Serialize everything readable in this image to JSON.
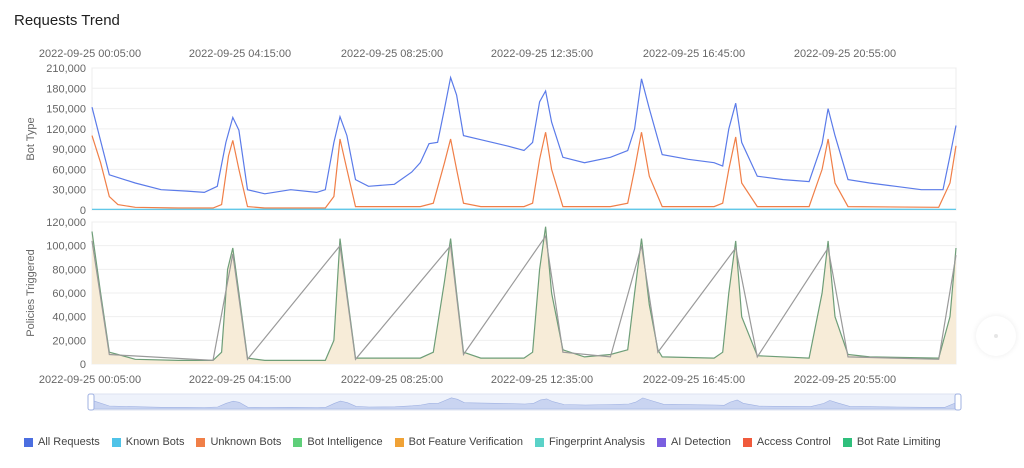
{
  "title": "Requests Trend",
  "chart_data": {
    "type": "line",
    "x_ticks": [
      "2022-09-25 00:05:00",
      "2022-09-25 04:15:00",
      "2022-09-25 08:25:00",
      "2022-09-25 12:35:00",
      "2022-09-25 16:45:00",
      "2022-09-25 20:55:00"
    ],
    "panels": [
      {
        "ylabel": "Bot Type",
        "ylim": [
          0,
          210000
        ],
        "yticks": [
          "0",
          "30,000",
          "60,000",
          "90,000",
          "120,000",
          "150,000",
          "180,000",
          "210,000"
        ],
        "ytick_values": [
          0,
          30000,
          60000,
          90000,
          120000,
          150000,
          180000,
          210000
        ],
        "series": [
          {
            "name": "All Requests",
            "color": "#5b7be9",
            "points": [
              [
                0,
                152000
              ],
              [
                0.02,
                52000
              ],
              [
                0.05,
                40000
              ],
              [
                0.08,
                30000
              ],
              [
                0.11,
                28000
              ],
              [
                0.13,
                26000
              ],
              [
                0.145,
                35000
              ],
              [
                0.155,
                100000
              ],
              [
                0.163,
                137000
              ],
              [
                0.17,
                118000
              ],
              [
                0.18,
                30000
              ],
              [
                0.2,
                24000
              ],
              [
                0.23,
                30000
              ],
              [
                0.26,
                26000
              ],
              [
                0.27,
                30000
              ],
              [
                0.28,
                100000
              ],
              [
                0.287,
                138000
              ],
              [
                0.295,
                110000
              ],
              [
                0.305,
                45000
              ],
              [
                0.32,
                35000
              ],
              [
                0.35,
                38000
              ],
              [
                0.37,
                56000
              ],
              [
                0.38,
                70000
              ],
              [
                0.39,
                98000
              ],
              [
                0.4,
                100000
              ],
              [
                0.408,
                150000
              ],
              [
                0.415,
                196000
              ],
              [
                0.422,
                170000
              ],
              [
                0.43,
                110000
              ],
              [
                0.45,
                104000
              ],
              [
                0.48,
                95000
              ],
              [
                0.5,
                88000
              ],
              [
                0.51,
                100000
              ],
              [
                0.518,
                160000
              ],
              [
                0.525,
                176000
              ],
              [
                0.532,
                130000
              ],
              [
                0.545,
                78000
              ],
              [
                0.57,
                70000
              ],
              [
                0.6,
                78000
              ],
              [
                0.62,
                88000
              ],
              [
                0.628,
                120000
              ],
              [
                0.636,
                194000
              ],
              [
                0.645,
                150000
              ],
              [
                0.66,
                82000
              ],
              [
                0.69,
                75000
              ],
              [
                0.72,
                70000
              ],
              [
                0.73,
                65000
              ],
              [
                0.737,
                120000
              ],
              [
                0.745,
                158000
              ],
              [
                0.752,
                100000
              ],
              [
                0.77,
                50000
              ],
              [
                0.8,
                45000
              ],
              [
                0.83,
                42000
              ],
              [
                0.845,
                98000
              ],
              [
                0.852,
                150000
              ],
              [
                0.86,
                110000
              ],
              [
                0.875,
                45000
              ],
              [
                0.9,
                40000
              ],
              [
                0.93,
                35000
              ],
              [
                0.96,
                30000
              ],
              [
                0.985,
                30000
              ],
              [
                0.993,
                80000
              ],
              [
                1.0,
                125000
              ]
            ]
          },
          {
            "name": "Unknown Bots",
            "color": "#f07f48",
            "points": [
              [
                0,
                110000
              ],
              [
                0.01,
                70000
              ],
              [
                0.02,
                20000
              ],
              [
                0.03,
                8000
              ],
              [
                0.05,
                4000
              ],
              [
                0.1,
                3000
              ],
              [
                0.14,
                3000
              ],
              [
                0.15,
                8000
              ],
              [
                0.158,
                80000
              ],
              [
                0.163,
                103000
              ],
              [
                0.17,
                60000
              ],
              [
                0.18,
                5000
              ],
              [
                0.2,
                3000
              ],
              [
                0.27,
                3000
              ],
              [
                0.28,
                20000
              ],
              [
                0.287,
                105000
              ],
              [
                0.295,
                60000
              ],
              [
                0.305,
                5000
              ],
              [
                0.38,
                5000
              ],
              [
                0.395,
                10000
              ],
              [
                0.408,
                70000
              ],
              [
                0.415,
                105000
              ],
              [
                0.422,
                60000
              ],
              [
                0.43,
                10000
              ],
              [
                0.45,
                5000
              ],
              [
                0.5,
                5000
              ],
              [
                0.51,
                10000
              ],
              [
                0.518,
                75000
              ],
              [
                0.525,
                115000
              ],
              [
                0.532,
                60000
              ],
              [
                0.545,
                5000
              ],
              [
                0.6,
                5000
              ],
              [
                0.62,
                10000
              ],
              [
                0.628,
                60000
              ],
              [
                0.636,
                115000
              ],
              [
                0.645,
                50000
              ],
              [
                0.66,
                5000
              ],
              [
                0.72,
                5000
              ],
              [
                0.73,
                10000
              ],
              [
                0.737,
                60000
              ],
              [
                0.745,
                108000
              ],
              [
                0.752,
                40000
              ],
              [
                0.77,
                5000
              ],
              [
                0.83,
                5000
              ],
              [
                0.845,
                60000
              ],
              [
                0.852,
                105000
              ],
              [
                0.86,
                40000
              ],
              [
                0.875,
                5000
              ],
              [
                0.98,
                4000
              ],
              [
                0.993,
                40000
              ],
              [
                1.0,
                95000
              ]
            ]
          },
          {
            "name": "Known Bots",
            "color": "#4fc3e8",
            "points": [
              [
                0,
                1000
              ],
              [
                0.5,
                1200
              ],
              [
                1.0,
                1000
              ]
            ]
          }
        ]
      },
      {
        "ylabel": "Policies Triggered",
        "ylim": [
          0,
          120000
        ],
        "yticks": [
          "0",
          "20,000",
          "40,000",
          "60,000",
          "80,000",
          "100,000",
          "120,000"
        ],
        "ytick_values": [
          0,
          20000,
          40000,
          60000,
          80000,
          100000,
          120000
        ],
        "series": [
          {
            "name": "Bot Rate Limiting",
            "color": "#6e9e78",
            "fill": "#f7ecd8",
            "points": [
              [
                0,
                112000
              ],
              [
                0.01,
                60000
              ],
              [
                0.02,
                10000
              ],
              [
                0.03,
                8000
              ],
              [
                0.05,
                4000
              ],
              [
                0.1,
                3000
              ],
              [
                0.14,
                3000
              ],
              [
                0.15,
                10000
              ],
              [
                0.157,
                80000
              ],
              [
                0.163,
                98000
              ],
              [
                0.17,
                60000
              ],
              [
                0.18,
                5000
              ],
              [
                0.2,
                3000
              ],
              [
                0.27,
                3000
              ],
              [
                0.28,
                20000
              ],
              [
                0.287,
                106000
              ],
              [
                0.295,
                60000
              ],
              [
                0.305,
                5000
              ],
              [
                0.38,
                5000
              ],
              [
                0.395,
                10000
              ],
              [
                0.408,
                70000
              ],
              [
                0.415,
                106000
              ],
              [
                0.422,
                60000
              ],
              [
                0.43,
                10000
              ],
              [
                0.45,
                5000
              ],
              [
                0.5,
                5000
              ],
              [
                0.51,
                10000
              ],
              [
                0.518,
                80000
              ],
              [
                0.525,
                116000
              ],
              [
                0.532,
                60000
              ],
              [
                0.545,
                12000
              ],
              [
                0.57,
                6000
              ],
              [
                0.6,
                8000
              ],
              [
                0.62,
                12000
              ],
              [
                0.628,
                60000
              ],
              [
                0.636,
                106000
              ],
              [
                0.645,
                50000
              ],
              [
                0.655,
                12000
              ],
              [
                0.66,
                6000
              ],
              [
                0.72,
                5000
              ],
              [
                0.73,
                10000
              ],
              [
                0.737,
                60000
              ],
              [
                0.745,
                104000
              ],
              [
                0.752,
                40000
              ],
              [
                0.77,
                7000
              ],
              [
                0.83,
                5000
              ],
              [
                0.845,
                60000
              ],
              [
                0.852,
                104000
              ],
              [
                0.86,
                40000
              ],
              [
                0.875,
                8000
              ],
              [
                0.9,
                6000
              ],
              [
                0.98,
                5000
              ],
              [
                0.993,
                40000
              ],
              [
                1.0,
                98000
              ]
            ]
          },
          {
            "name": "Access Control",
            "color": "#9a9a9a",
            "points": [
              [
                0,
                104000
              ],
              [
                0.02,
                8000
              ],
              [
                0.14,
                3000
              ],
              [
                0.163,
                93000
              ],
              [
                0.18,
                4000
              ],
              [
                0.287,
                100000
              ],
              [
                0.305,
                4000
              ],
              [
                0.415,
                100000
              ],
              [
                0.43,
                8000
              ],
              [
                0.525,
                108000
              ],
              [
                0.545,
                10000
              ],
              [
                0.6,
                6000
              ],
              [
                0.636,
                100000
              ],
              [
                0.655,
                10000
              ],
              [
                0.745,
                98000
              ],
              [
                0.77,
                6000
              ],
              [
                0.852,
                98000
              ],
              [
                0.875,
                6000
              ],
              [
                0.98,
                4000
              ],
              [
                1.0,
                92000
              ]
            ]
          }
        ]
      }
    ],
    "legend": [
      {
        "name": "All Requests",
        "color": "#4b6ee0"
      },
      {
        "name": "Known Bots",
        "color": "#4fc3e8"
      },
      {
        "name": "Unknown Bots",
        "color": "#f07f48"
      },
      {
        "name": "Bot Intelligence",
        "color": "#5fcf7a"
      },
      {
        "name": "Bot Feature Verification",
        "color": "#f0a236"
      },
      {
        "name": "Fingerprint Analysis",
        "color": "#5ad2c8"
      },
      {
        "name": "AI Detection",
        "color": "#7a5fe0"
      },
      {
        "name": "Access Control",
        "color": "#f05a3c"
      },
      {
        "name": "Bot Rate Limiting",
        "color": "#2fbf7c"
      }
    ]
  }
}
